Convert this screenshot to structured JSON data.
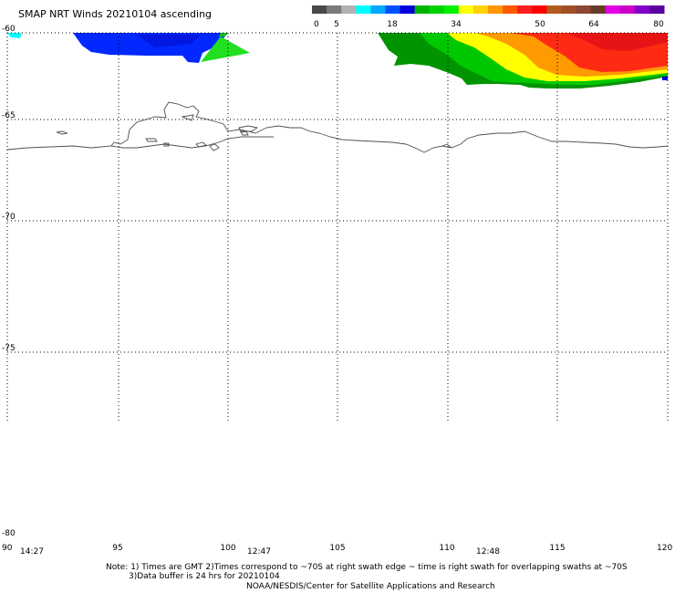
{
  "title": "SMAP NRT Winds 20210104 ascending",
  "colorbar": {
    "tick_labels": [
      "0",
      "5",
      "18",
      "34",
      "50",
      "64",
      "80"
    ],
    "segments": [
      "#4a4a4a",
      "#7a7a7a",
      "#b2b2b2",
      "#00ffff",
      "#00a8ff",
      "#0050ff",
      "#0000dc",
      "#00b400",
      "#00d200",
      "#00f000",
      "#ffff00",
      "#ffd200",
      "#ff9600",
      "#ff5a00",
      "#ff1e1e",
      "#ff0000",
      "#b45a1e",
      "#a05028",
      "#8c4632",
      "#643c28",
      "#e600e6",
      "#c800c8",
      "#8200c8",
      "#5a00a0"
    ]
  },
  "axes": {
    "lat_labels": [
      "-60",
      "-65",
      "-70",
      "-75",
      "-80"
    ],
    "lon_labels": [
      "90",
      "95",
      "100",
      "105",
      "110",
      "115",
      "120"
    ]
  },
  "swath_times": [
    "14:27",
    "12:47",
    "12:48"
  ],
  "notes": {
    "line1": "Note: 1) Times are GMT 2)Times correspond to ~70S at right swath edge ~ time is right swath for overlapping swaths at ~70S",
    "line2": "3)Data buffer is 24 hrs for 20210104",
    "line3": "NOAA/NESDIS/Center for Satellite Applications and Research"
  },
  "colors": {
    "blue_swath": "#0028ff",
    "coast": "#505050",
    "grid": "#000000"
  }
}
